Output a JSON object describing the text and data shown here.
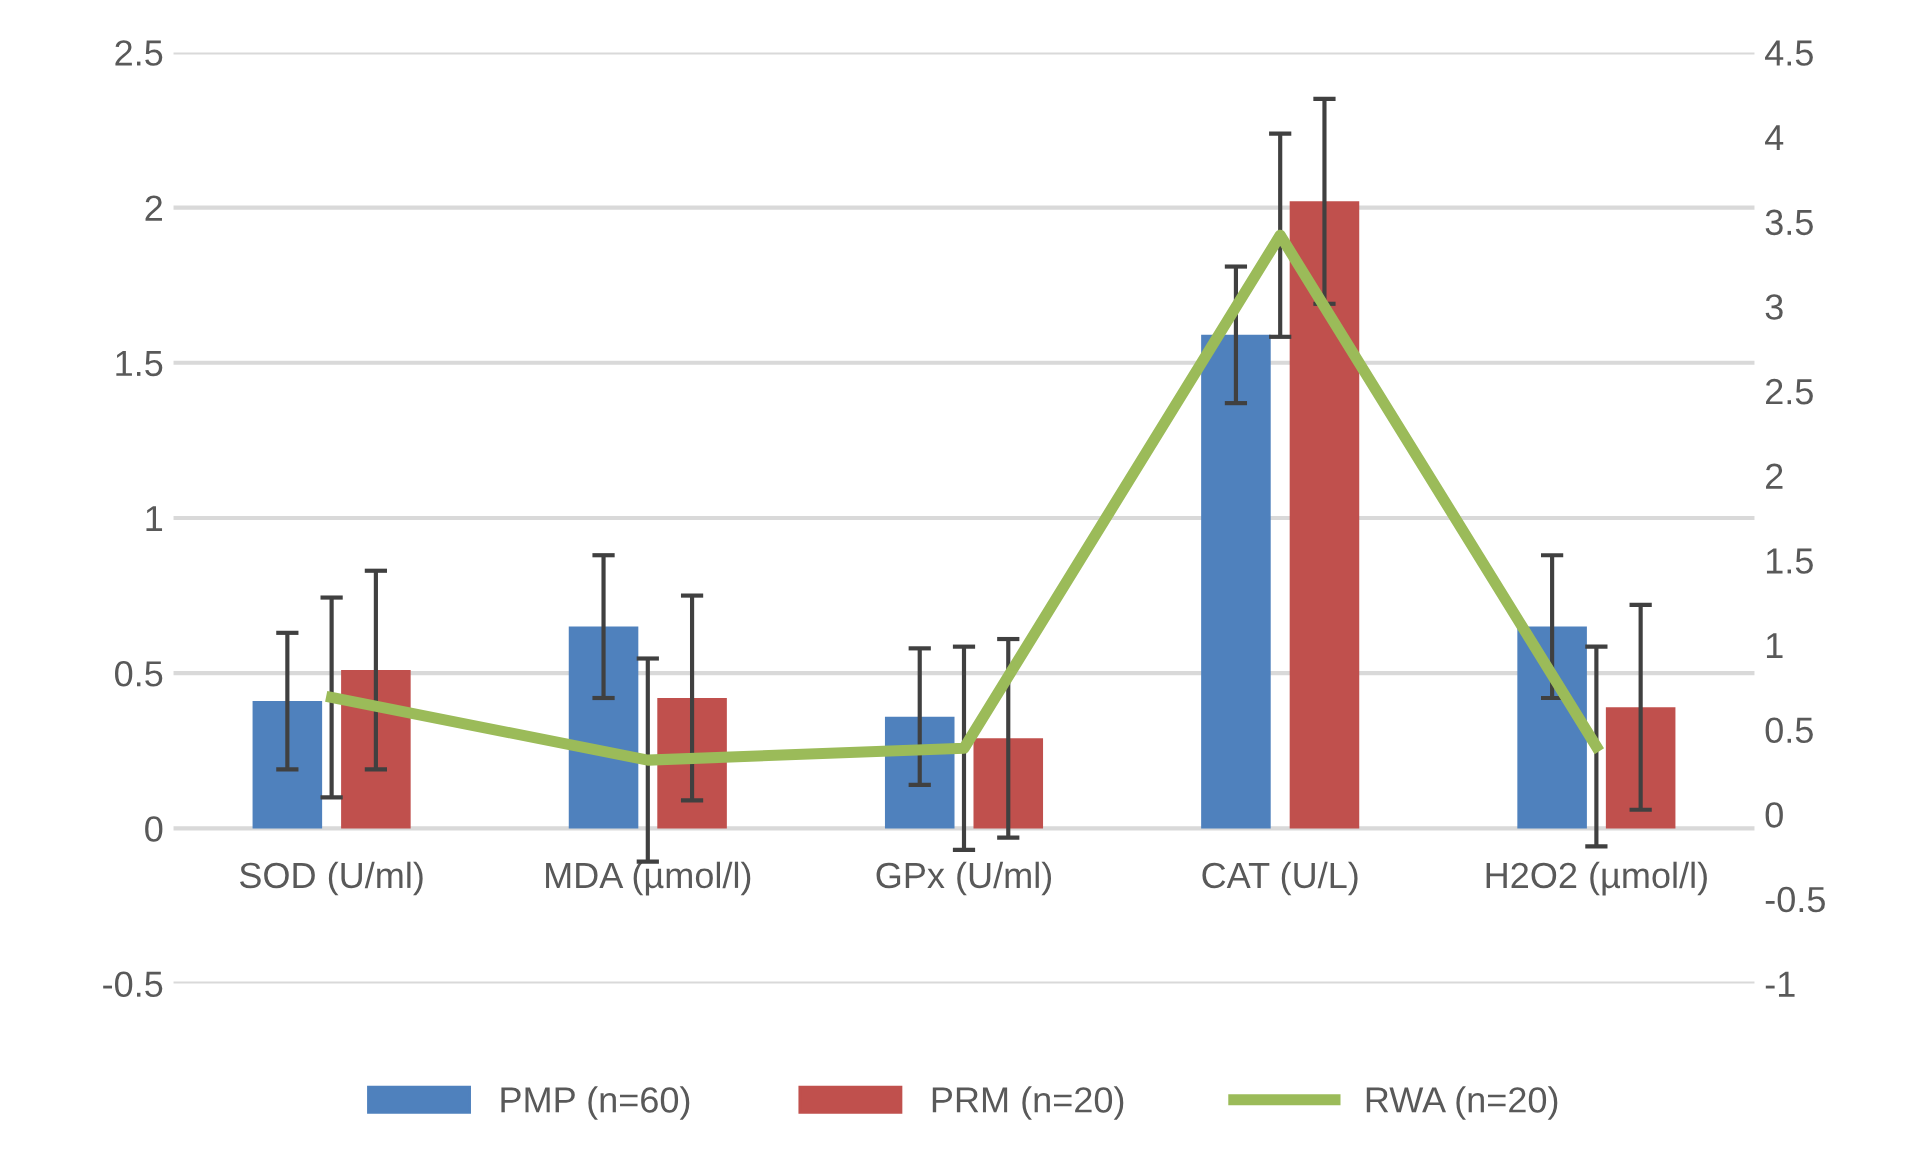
{
  "chart_data": {
    "type": "bar",
    "categories": [
      "SOD (U/ml)",
      "MDA (µmol/l)",
      "GPx (U/ml)",
      "CAT (U/L)",
      "H2O2 (µmol/l)"
    ],
    "series": [
      {
        "name": "PMP (n=60)",
        "color": "#4f81bd",
        "values": [
          0.41,
          0.65,
          0.36,
          1.59,
          0.65
        ],
        "errors": [
          0.22,
          0.23,
          0.22,
          0.22,
          0.23
        ]
      },
      {
        "name": "PRM (n=20)",
        "color": "#c0504d",
        "values": [
          0.51,
          0.42,
          0.29,
          2.02,
          0.39
        ],
        "errors": [
          0.32,
          0.33,
          0.32,
          0.33,
          0.33
        ]
      },
      {
        "name": "RWA (n=20)",
        "type": "line",
        "axis": "y2",
        "color": "#9bbb59",
        "values": [
          0.69,
          0.32,
          0.39,
          3.42,
          0.4
        ],
        "errors": [
          0.59,
          0.6,
          0.6,
          0.6,
          0.59
        ]
      }
    ],
    "ylim": [
      -0.5,
      2.5
    ],
    "yticks": [
      {
        "value": -0.5,
        "label": "-0.5"
      },
      0,
      0.5,
      1,
      1.5,
      2,
      2.5
    ],
    "y2lim": [
      -1,
      4.5
    ],
    "y2ticks": [
      {
        "value": -1,
        "label": "-1"
      },
      {
        "value": -0.5,
        "label": "-0.5"
      },
      0,
      0.5,
      1,
      1.5,
      2,
      2.5,
      3,
      3.5,
      4,
      4.5
    ],
    "grid": "y",
    "legend": "bottom",
    "marker": "none",
    "line_style": "solid"
  }
}
